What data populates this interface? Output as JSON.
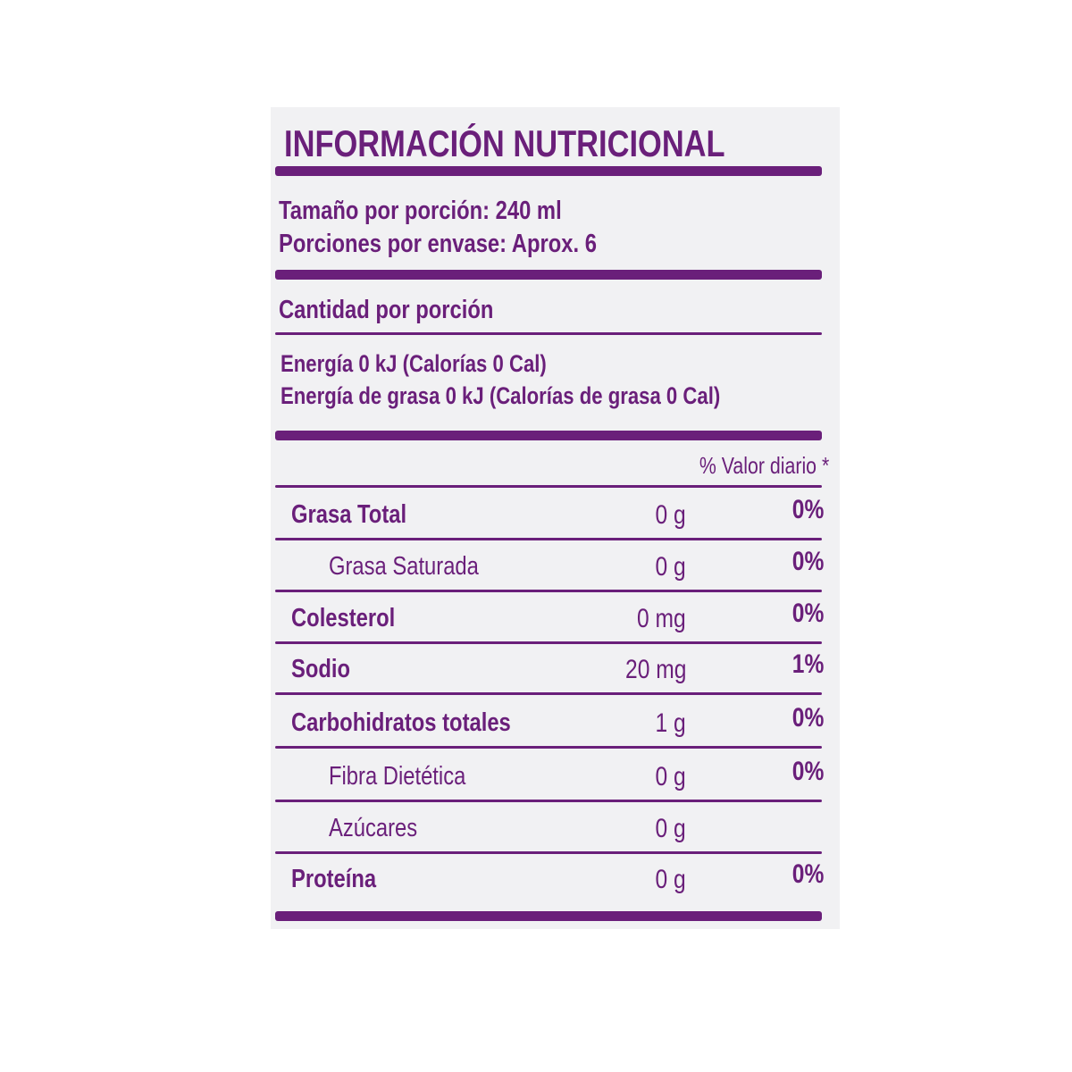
{
  "label": {
    "title": "INFORMACIÓN NUTRICIONAL",
    "serving_size": "Tamaño por porción: 240 ml",
    "servings_per_container": "Porciones por envase: Aprox. 6",
    "amount_per_serving": "Cantidad por porción",
    "energy": "Energía 0 kJ (Calorías 0 Cal)",
    "energy_from_fat": "Energía de grasa 0 kJ (Calorías de grasa 0 Cal)",
    "daily_value_header": "% Valor diario *",
    "rows": [
      {
        "name": "Grasa Total",
        "amount": "0 g",
        "dv": "0%"
      },
      {
        "name": "Grasa Saturada",
        "amount": "0 g",
        "dv": "0%"
      },
      {
        "name": "Colesterol",
        "amount": "0 mg",
        "dv": "0%"
      },
      {
        "name": "Sodio",
        "amount": "20 mg",
        "dv": "1%"
      },
      {
        "name": "Carbohidratos totales",
        "amount": "1 g",
        "dv": "0%"
      },
      {
        "name": "Fibra Dietética",
        "amount": "0 g",
        "dv": "0%"
      },
      {
        "name": "Azúcares",
        "amount": "0 g",
        "dv": ""
      },
      {
        "name": "Proteína",
        "amount": "0 g",
        "dv": "0%"
      }
    ]
  },
  "colors": {
    "ink": "#6a1f7a",
    "background": "#f1f1f3"
  }
}
